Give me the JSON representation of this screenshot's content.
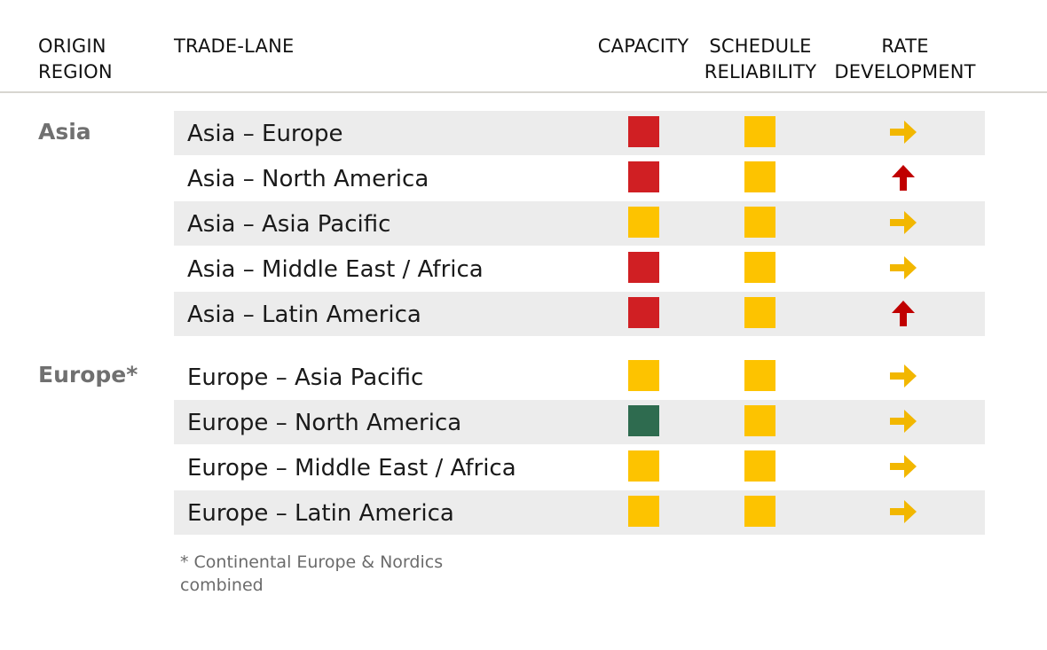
{
  "headers": {
    "origin_line1": "ORIGIN",
    "origin_line2": "REGION",
    "trade_lane": "TRADE-LANE",
    "capacity": "CAPACITY",
    "schedule_line1": "SCHEDULE",
    "schedule_line2": "RELIABILITY",
    "rate_line1": "RATE",
    "rate_line2": "DEVELOPMENT"
  },
  "colors": {
    "red": "#d01f23",
    "amber": "#fdc300",
    "green": "#2e6b4f",
    "arrow_flat": "#f2b700",
    "arrow_up": "#c00000"
  },
  "regions": [
    {
      "label": "Asia"
    },
    {
      "label": "Europe*"
    }
  ],
  "rows": [
    {
      "lane": "Asia – Europe",
      "capacity": "red",
      "schedule": "amber",
      "rate": "flat-arrow-icon"
    },
    {
      "lane": "Asia – North America",
      "capacity": "red",
      "schedule": "amber",
      "rate": "up-arrow-icon"
    },
    {
      "lane": "Asia – Asia Pacific",
      "capacity": "amber",
      "schedule": "amber",
      "rate": "flat-arrow-icon"
    },
    {
      "lane": "Asia – Middle East / Africa",
      "capacity": "red",
      "schedule": "amber",
      "rate": "flat-arrow-icon"
    },
    {
      "lane": "Asia – Latin America",
      "capacity": "red",
      "schedule": "amber",
      "rate": "up-arrow-icon"
    },
    {
      "lane": "Europe – Asia Pacific",
      "capacity": "amber",
      "schedule": "amber",
      "rate": "flat-arrow-icon"
    },
    {
      "lane": "Europe – North America",
      "capacity": "green",
      "schedule": "amber",
      "rate": "flat-arrow-icon"
    },
    {
      "lane": "Europe – Middle East / Africa",
      "capacity": "amber",
      "schedule": "amber",
      "rate": "flat-arrow-icon"
    },
    {
      "lane": "Europe – Latin America",
      "capacity": "amber",
      "schedule": "amber",
      "rate": "flat-arrow-icon"
    }
  ],
  "footnote": {
    "line1": "* Continental Europe & Nordics",
    "line2": "combined"
  }
}
